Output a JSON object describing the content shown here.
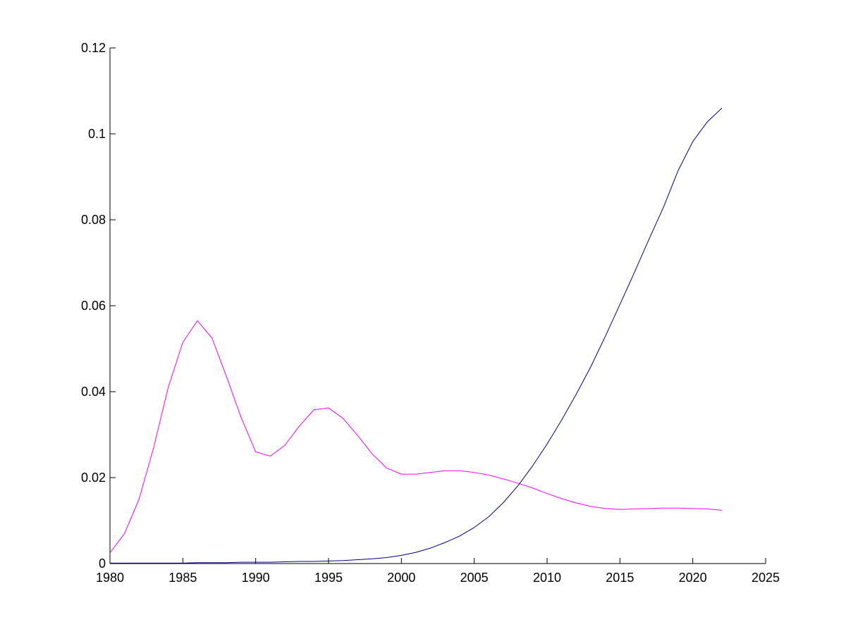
{
  "chart_data": {
    "type": "line",
    "title": "",
    "xlabel": "",
    "ylabel": "",
    "xlim": [
      1980,
      2025
    ],
    "ylim": [
      0,
      0.12
    ],
    "x_ticks": [
      1980,
      1985,
      1990,
      1995,
      2000,
      2005,
      2010,
      2015,
      2020,
      2025
    ],
    "y_ticks": [
      0,
      0.02,
      0.04,
      0.06,
      0.08,
      0.1,
      0.12
    ],
    "x_tick_labels": [
      "1980",
      "1985",
      "1990",
      "1995",
      "2000",
      "2005",
      "2010",
      "2015",
      "2020",
      "2025"
    ],
    "y_tick_labels": [
      "0",
      "0.02",
      "0.04",
      "0.06",
      "0.08",
      "0.1",
      "0.12"
    ],
    "grid": false,
    "legend": "none",
    "series": [
      {
        "color": "#ff00ff",
        "x": [
          1980,
          1981,
          1982,
          1983,
          1984,
          1985,
          1986,
          1987,
          1988,
          1989,
          1990,
          1991,
          1992,
          1993,
          1994,
          1995,
          1996,
          1997,
          1998,
          1999,
          2000,
          2001,
          2002,
          2003,
          2004,
          2005,
          2006,
          2007,
          2008,
          2009,
          2010,
          2011,
          2012,
          2013,
          2014,
          2015,
          2016,
          2017,
          2018,
          2019,
          2020,
          2021,
          2022
        ],
        "y": [
          0.0025,
          0.007,
          0.015,
          0.027,
          0.041,
          0.0515,
          0.0565,
          0.0525,
          0.0435,
          0.034,
          0.026,
          0.025,
          0.0275,
          0.032,
          0.0358,
          0.0362,
          0.0338,
          0.0298,
          0.0255,
          0.0222,
          0.0208,
          0.0208,
          0.0212,
          0.0216,
          0.0216,
          0.0212,
          0.0206,
          0.0197,
          0.0187,
          0.0176,
          0.0163,
          0.0151,
          0.0141,
          0.0133,
          0.0128,
          0.0126,
          0.0127,
          0.0128,
          0.0129,
          0.0129,
          0.0128,
          0.0127,
          0.0124
        ]
      },
      {
        "color": "#00008b",
        "x": [
          1980,
          1981,
          1982,
          1983,
          1984,
          1985,
          1986,
          1987,
          1988,
          1989,
          1990,
          1991,
          1992,
          1993,
          1994,
          1995,
          1996,
          1997,
          1998,
          1999,
          2000,
          2001,
          2002,
          2003,
          2004,
          2005,
          2006,
          2007,
          2008,
          2009,
          2010,
          2011,
          2012,
          2013,
          2014,
          2015,
          2016,
          2017,
          2018,
          2019,
          2020,
          2021,
          2022
        ],
        "y": [
          0.0001,
          0.0001,
          0.0001,
          0.0001,
          0.0001,
          0.0001,
          0.0002,
          0.0002,
          0.0002,
          0.0003,
          0.0003,
          0.0003,
          0.0004,
          0.0005,
          0.0005,
          0.0006,
          0.0007,
          0.0009,
          0.0011,
          0.0014,
          0.0019,
          0.0026,
          0.0036,
          0.0049,
          0.0064,
          0.0084,
          0.0109,
          0.0142,
          0.0181,
          0.0227,
          0.0278,
          0.0334,
          0.0394,
          0.0458,
          0.0529,
          0.0603,
          0.0678,
          0.0755,
          0.083,
          0.0915,
          0.0982,
          0.1028,
          0.106
        ]
      }
    ]
  }
}
